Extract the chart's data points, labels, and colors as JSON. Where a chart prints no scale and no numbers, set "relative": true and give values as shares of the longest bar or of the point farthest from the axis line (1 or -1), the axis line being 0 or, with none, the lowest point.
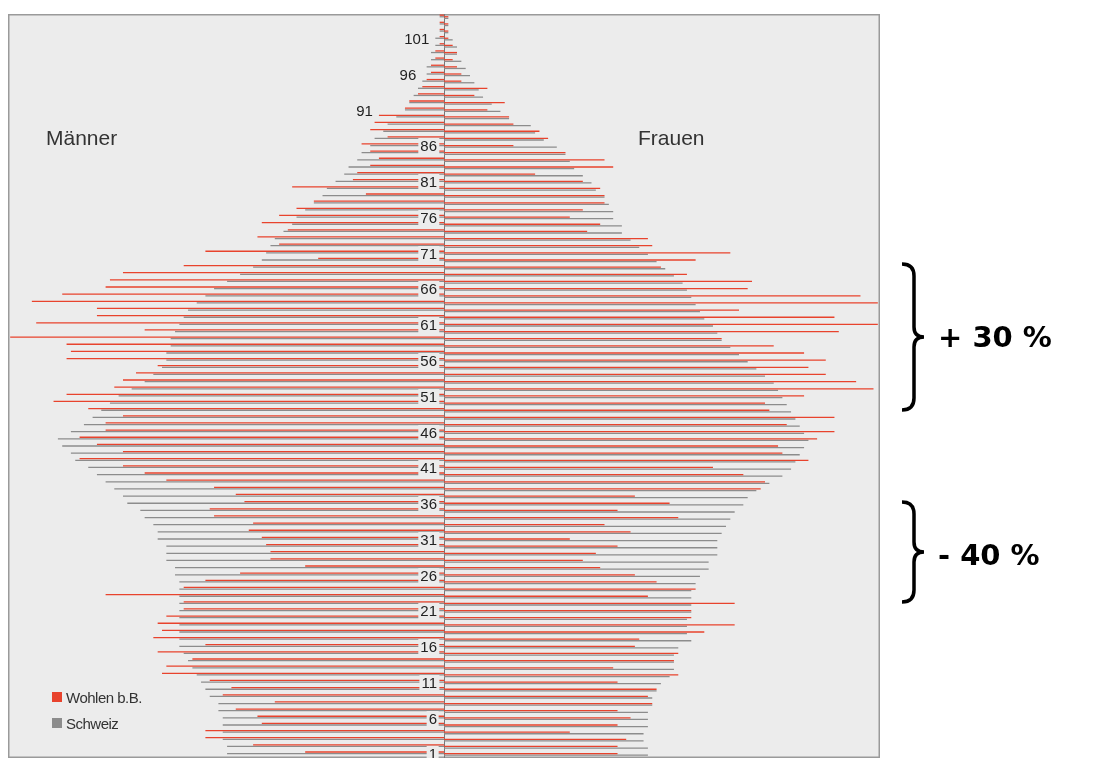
{
  "chart_data": {
    "type": "bar",
    "orientation": "horizontal",
    "relative": true,
    "legend": "bottom left",
    "categories": [
      null,
      null,
      null,
      "101",
      null,
      null,
      null,
      null,
      "96",
      null,
      null,
      null,
      null,
      "91",
      null,
      null,
      null,
      null,
      "86",
      null,
      null,
      null,
      null,
      "81",
      null,
      null,
      null,
      null,
      "76",
      null,
      null,
      null,
      null,
      "71",
      null,
      null,
      null,
      null,
      "66",
      null,
      null,
      null,
      null,
      "61",
      null,
      null,
      null,
      null,
      "56",
      null,
      null,
      null,
      null,
      "51",
      null,
      null,
      null,
      null,
      "46",
      null,
      null,
      null,
      null,
      "41",
      null,
      null,
      null,
      null,
      "36",
      null,
      null,
      null,
      null,
      "31",
      null,
      null,
      null,
      null,
      "26",
      null,
      null,
      null,
      null,
      "21",
      null,
      null,
      null,
      null,
      "16",
      null,
      null,
      null,
      null,
      "11",
      null,
      null,
      null,
      null,
      "6",
      null,
      null,
      null,
      null,
      "1"
    ],
    "series": [
      {
        "name": "Wohlen b.B.",
        "color": "#e8432d",
        "values": [
          -0.01,
          -0.01,
          -0.01,
          -0.01,
          -0.01,
          -0.02,
          -0.02,
          -0.03,
          -0.03,
          -0.04,
          -0.05,
          -0.06,
          -0.08,
          -0.09,
          -0.15,
          -0.16,
          -0.17,
          -0.13,
          -0.19,
          -0.17,
          -0.15,
          -0.17,
          -0.2,
          -0.21,
          -0.35,
          -0.18,
          -0.3,
          -0.34,
          -0.38,
          -0.42,
          -0.36,
          -0.43,
          -0.38,
          -0.55,
          -0.29,
          -0.6,
          -0.74,
          -0.77,
          -0.78,
          -0.88,
          -0.95,
          -0.8,
          -0.8,
          -0.94,
          -0.69,
          -1,
          -0.87,
          -0.86,
          -0.87,
          -0.66,
          -0.71,
          -0.74,
          -0.76,
          -0.87,
          -0.9,
          -0.82,
          -0.74,
          -0.78,
          -0.78,
          -0.84,
          -0.8,
          -0.74,
          -0.84,
          -0.74,
          -0.69,
          -0.64,
          -0.53,
          -0.48,
          -0.46,
          -0.54,
          -0.53,
          -0.44,
          -0.45,
          -0.42,
          -0.41,
          -0.4,
          -0.4,
          -0.32,
          -0.47,
          -0.55,
          -0.6,
          -0.78,
          -0.6,
          -0.6,
          -0.64,
          -0.66,
          -0.65,
          -0.67,
          -0.55,
          -0.66,
          -0.58,
          -0.64,
          -0.65,
          -0.54,
          -0.49,
          -0.51,
          -0.39,
          -0.48,
          -0.43,
          -0.42,
          -0.55,
          -0.55,
          -0.44,
          -0.32
        ]
      },
      {
        "color": "#e8432d",
        "values": [
          0.01,
          0.01,
          0.01,
          0.01,
          0.02,
          0.03,
          0.02,
          0.03,
          0.04,
          0.04,
          0.1,
          0.07,
          0.14,
          0.1,
          0.15,
          0.16,
          0.22,
          0.24,
          0.16,
          0.28,
          0.37,
          0.39,
          0.21,
          0.32,
          0.36,
          0.37,
          0.37,
          0.32,
          0.29,
          0.36,
          0.33,
          0.47,
          0.48,
          0.66,
          0.58,
          0.5,
          0.56,
          0.71,
          0.7,
          0.96,
          1,
          0.68,
          0.9,
          1,
          0.91,
          0.64,
          0.76,
          0.83,
          0.88,
          0.84,
          0.88,
          0.95,
          0.99,
          0.83,
          0.74,
          0.75,
          0.9,
          0.79,
          0.9,
          0.86,
          0.77,
          0.78,
          0.84,
          0.62,
          0.69,
          0.74,
          0.73,
          0.44,
          0.52,
          0.4,
          0.54,
          0.37,
          0.43,
          0.29,
          0.4,
          0.35,
          0.32,
          0.36,
          0.44,
          0.49,
          0.58,
          0.47,
          0.67,
          0.57,
          0.57,
          0.67,
          0.6,
          0.45,
          0.44,
          0.54,
          0.53,
          0.39,
          0.54,
          0.4,
          0.49,
          0.47,
          0.48,
          0.4,
          0.43,
          0.4,
          0.29,
          0.42,
          0.4,
          0.4
        ]
      },
      {
        "name": "Schweiz",
        "color": "#8c8c8c",
        "values": [
          -0.01,
          -0.01,
          -0.01,
          -0.02,
          -0.02,
          -0.03,
          -0.03,
          -0.04,
          -0.04,
          -0.05,
          -0.06,
          -0.07,
          -0.08,
          -0.09,
          -0.11,
          -0.13,
          -0.14,
          -0.16,
          -0.17,
          -0.19,
          -0.2,
          -0.22,
          -0.23,
          -0.25,
          -0.27,
          -0.28,
          -0.3,
          -0.32,
          -0.34,
          -0.35,
          -0.37,
          -0.39,
          -0.4,
          -0.41,
          -0.42,
          -0.44,
          -0.47,
          -0.5,
          -0.53,
          -0.55,
          -0.57,
          -0.59,
          -0.6,
          -0.61,
          -0.62,
          -0.63,
          -0.63,
          -0.64,
          -0.64,
          -0.65,
          -0.67,
          -0.69,
          -0.72,
          -0.75,
          -0.77,
          -0.79,
          -0.81,
          -0.83,
          -0.86,
          -0.89,
          -0.88,
          -0.86,
          -0.85,
          -0.82,
          -0.8,
          -0.78,
          -0.76,
          -0.74,
          -0.73,
          -0.7,
          -0.69,
          -0.67,
          -0.66,
          -0.66,
          -0.64,
          -0.64,
          -0.64,
          -0.62,
          -0.62,
          -0.61,
          -0.61,
          -0.61,
          -0.61,
          -0.61,
          -0.61,
          -0.61,
          -0.61,
          -0.61,
          -0.61,
          -0.6,
          -0.59,
          -0.58,
          -0.57,
          -0.56,
          -0.55,
          -0.54,
          -0.52,
          -0.52,
          -0.51,
          -0.51,
          -0.51,
          -0.51,
          -0.5,
          -0.5
        ]
      },
      {
        "color": "#8c8c8c",
        "values": [
          0.01,
          0.01,
          0.01,
          0.02,
          0.03,
          0.03,
          0.04,
          0.05,
          0.06,
          0.07,
          0.08,
          0.09,
          0.11,
          0.13,
          0.15,
          0.2,
          0.21,
          0.23,
          0.26,
          0.28,
          0.29,
          0.3,
          0.32,
          0.34,
          0.35,
          0.37,
          0.38,
          0.39,
          0.39,
          0.41,
          0.41,
          0.43,
          0.45,
          0.47,
          0.49,
          0.51,
          0.53,
          0.55,
          0.56,
          0.57,
          0.58,
          0.59,
          0.6,
          0.62,
          0.63,
          0.64,
          0.66,
          0.68,
          0.7,
          0.72,
          0.74,
          0.76,
          0.77,
          0.78,
          0.79,
          0.8,
          0.81,
          0.82,
          0.83,
          0.84,
          0.83,
          0.82,
          0.81,
          0.8,
          0.78,
          0.75,
          0.72,
          0.7,
          0.69,
          0.67,
          0.66,
          0.65,
          0.64,
          0.63,
          0.63,
          0.63,
          0.61,
          0.61,
          0.59,
          0.58,
          0.57,
          0.57,
          0.57,
          0.57,
          0.56,
          0.56,
          0.56,
          0.57,
          0.54,
          0.53,
          0.53,
          0.53,
          0.52,
          0.5,
          0.49,
          0.48,
          0.48,
          0.47,
          0.47,
          0.47,
          0.46,
          0.46,
          0.47,
          0.47
        ]
      }
    ],
    "annotations": [
      "Männer",
      "Frauen",
      "+ 30 %",
      "- 40 %"
    ]
  }
}
